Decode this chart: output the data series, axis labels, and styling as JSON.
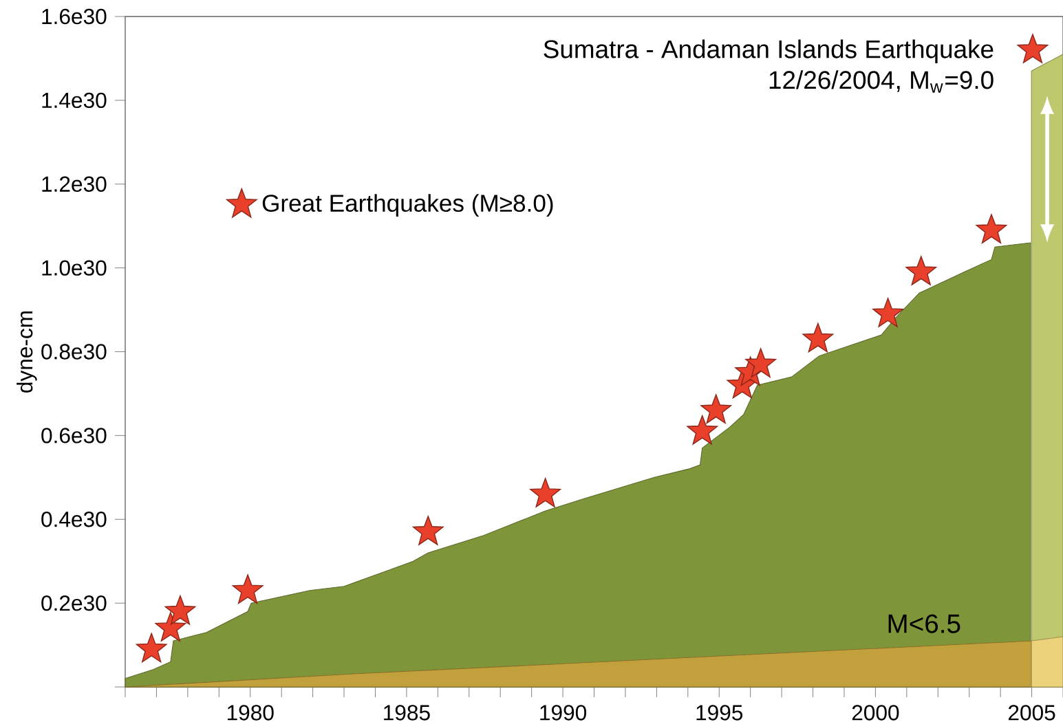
{
  "chart_data": {
    "type": "area",
    "ylabel": "dyne-cm",
    "annotations": [
      "Sumatra - Andaman Islands Earthquake",
      "12/26/2004, M$_{w}$=9.0"
    ],
    "xlim": [
      1976,
      2006
    ],
    "ylim": [
      0,
      1.6e+30
    ],
    "xticks": [
      {
        "value": 1976,
        "label": null
      },
      {
        "value": 1977,
        "label": null
      },
      {
        "value": 1978,
        "label": null
      },
      {
        "value": 1979,
        "label": null
      },
      1980,
      {
        "value": 1981,
        "label": null
      },
      {
        "value": 1982,
        "label": null
      },
      {
        "value": 1983,
        "label": null
      },
      {
        "value": 1984,
        "label": null
      },
      1985,
      {
        "value": 1986,
        "label": null
      },
      {
        "value": 1987,
        "label": null
      },
      {
        "value": 1988,
        "label": null
      },
      {
        "value": 1989,
        "label": null
      },
      1990,
      {
        "value": 1991,
        "label": null
      },
      {
        "value": 1992,
        "label": null
      },
      {
        "value": 1993,
        "label": null
      },
      {
        "value": 1994,
        "label": null
      },
      1995,
      {
        "value": 1996,
        "label": null
      },
      {
        "value": 1997,
        "label": null
      },
      {
        "value": 1998,
        "label": null
      },
      {
        "value": 1999,
        "label": null
      },
      2000,
      {
        "value": 2001,
        "label": null
      },
      {
        "value": 2002,
        "label": null
      },
      {
        "value": 2003,
        "label": null
      },
      {
        "value": 2004,
        "label": null
      },
      2005,
      {
        "value": 2006,
        "label": null
      }
    ],
    "yticks": [
      {
        "value": 0,
        "label": null
      },
      {
        "value": 2e+29,
        "label": "0.2e30"
      },
      {
        "value": 4e+29,
        "label": "0.4e30"
      },
      {
        "value": 6e+29,
        "label": "0.6e30"
      },
      {
        "value": 8e+29,
        "label": "0.8e30"
      },
      {
        "value": 1e+30,
        "label": "1.0e30"
      },
      {
        "value": 1.2e+30,
        "label": "1.2e30"
      },
      {
        "value": 1.4e+30,
        "label": "1.4e30"
      },
      {
        "value": 1.6e+30,
        "label": "1.6e30"
      }
    ],
    "legend": "top left",
    "series": [
      {
        "color": "#7f9539",
        "x": [
          1976.0,
          1976.84,
          1977.45,
          1977.54,
          1978.6,
          1979.92,
          1980.03,
          1981.9,
          1983.0,
          1984.11,
          1985.21,
          1985.69,
          1987.41,
          1989.44,
          1990.71,
          1992.92,
          1994.02,
          1994.39,
          1994.46,
          1995.34,
          1995.78,
          1996.22,
          1997.32,
          1998.2,
          2000.19,
          2000.63,
          2001.4,
          2002.83,
          2003.71,
          2003.82,
          2004.96
        ],
        "values": [
          2e+28,
          4e+28,
          6e+28,
          1.1e+29,
          1.3e+29,
          1.8e+29,
          2e+29,
          2.3e+29,
          2.4e+29,
          2.7e+29,
          3e+29,
          3.2e+29,
          3.6e+29,
          4.2e+29,
          4.5e+29,
          5e+29,
          5.2e+29,
          5.3e+29,
          5.7e+29,
          6.2e+29,
          6.5e+29,
          7.2e+29,
          7.4e+29,
          7.9e+29,
          8.4e+29,
          8.8e+29,
          9.4e+29,
          9.9e+29,
          1.02e+30,
          1.05e+30,
          1.06e+30
        ]
      },
      {
        "color": "#bdc96c",
        "x": [
          2004.99,
          2006.0
        ],
        "values": [
          1.47e+30,
          1.51e+30
        ]
      },
      {
        "name": "M<6.5",
        "color": "#c2a03c",
        "x": [
          1976.0,
          1983.0,
          1994.02,
          2004.99
        ],
        "values": [
          0,
          3e+28,
          7e+28,
          1.1e+29
        ]
      },
      {
        "color": "#ecd27a",
        "x": [
          2004.99,
          2006.0
        ],
        "values": [
          1.1e+29,
          1.2e+29
        ]
      },
      {
        "type": "scatter",
        "name": "Great Earthquakes (M≥8.0)",
        "color": "#e8402a",
        "marker": "star",
        "x": [
          1976.84,
          1977.45,
          1977.76,
          1979.92,
          1985.69,
          1989.44,
          1994.46,
          1994.9,
          1995.74,
          1996.0,
          1996.33,
          1998.16,
          2000.4,
          2001.46,
          2003.71,
          2005.03
        ],
        "values": [
          9e+28,
          1.4e+29,
          1.8e+29,
          2.3e+29,
          3.7e+29,
          4.6e+29,
          6.1e+29,
          6.6e+29,
          7.2e+29,
          7.5e+29,
          7.7e+29,
          8.3e+29,
          8.9e+29,
          9.9e+29,
          1.09e+30,
          1.52e+30
        ]
      }
    ]
  }
}
